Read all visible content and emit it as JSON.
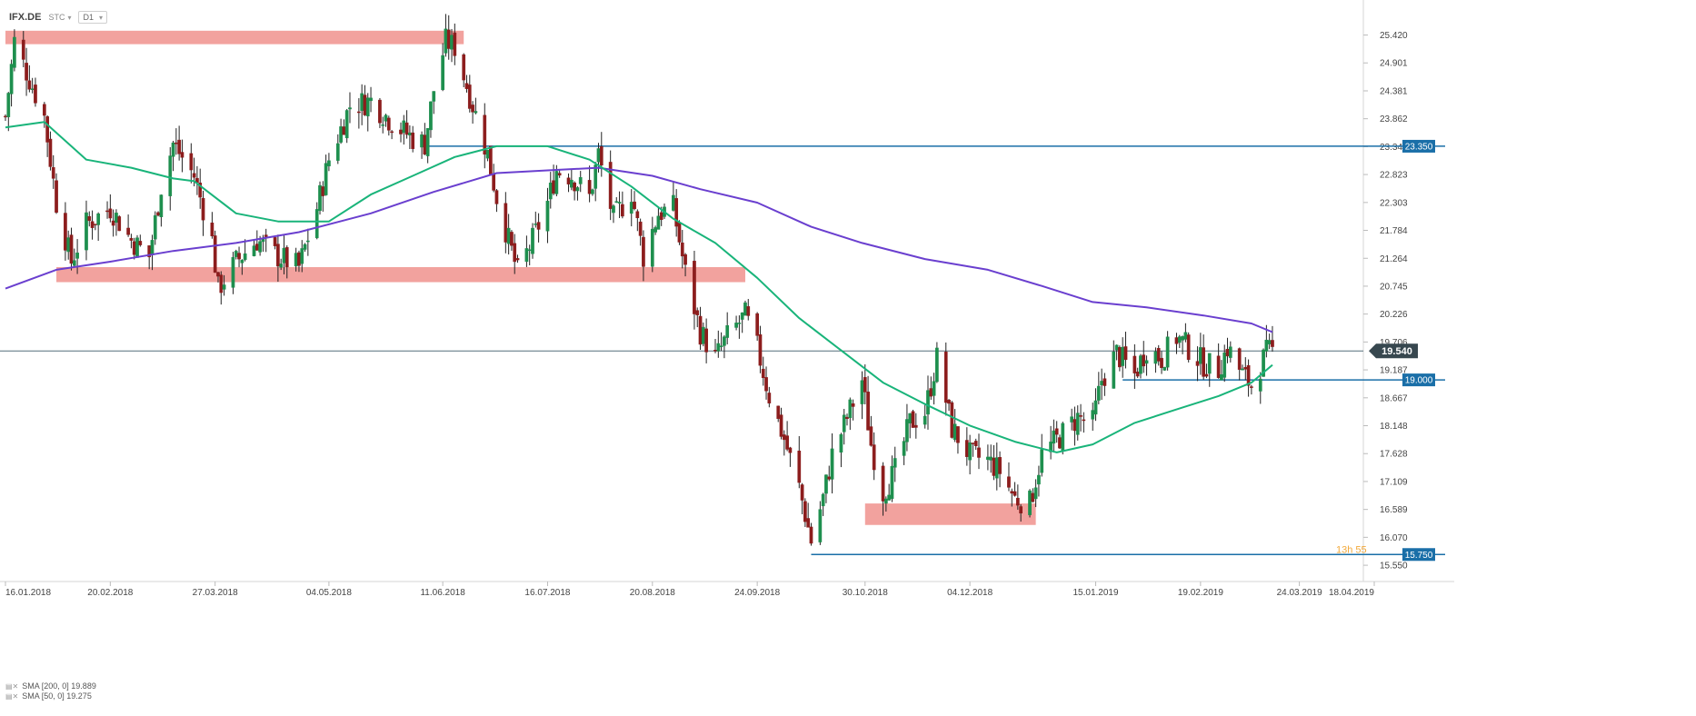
{
  "toolbar": {
    "symbol": "IFX.DE",
    "chart_style": "STC",
    "timeframe": "D1"
  },
  "legend": [
    {
      "text": "SMA  [200,  0]  19.889",
      "color": "#6a3fcf"
    },
    {
      "text": "SMA  [50,  0]  19.275",
      "color": "#19b47a"
    }
  ],
  "colors": {
    "bull": "#1e8f4e",
    "bear": "#8c1d1d",
    "sma50": "#19b47a",
    "sma200": "#6a3fcf",
    "level": "#1a6fa8",
    "zone": "#ef8b86"
  },
  "chart_data": {
    "type": "candlestick",
    "ylim": [
      15.45,
      25.7
    ],
    "x_start": "2018-01-16",
    "x_end": "2019-04-18",
    "yticks": [
      "25.420",
      "24.901",
      "24.381",
      "23.862",
      "23.342",
      "22.823",
      "22.303",
      "21.784",
      "21.264",
      "20.745",
      "20.226",
      "19.706",
      "19.187",
      "18.667",
      "18.148",
      "17.628",
      "17.109",
      "16.589",
      "16.070",
      "15.550"
    ],
    "xticks": [
      "16.01.2018",
      "20.02.2018",
      "27.03.2018",
      "04.05.2018",
      "11.06.2018",
      "16.07.2018",
      "20.08.2018",
      "24.09.2018",
      "30.10.2018",
      "04.12.2018",
      "15.01.2019",
      "19.02.2019",
      "24.03.2019",
      "18.04.2019"
    ],
    "last_price": {
      "value": 19.54,
      "label": "19.540"
    },
    "horizontal_levels": [
      {
        "value": 23.35,
        "label": "23.350",
        "from": "2018-06-05"
      },
      {
        "value": 19.0,
        "label": "19.000",
        "from": "2019-01-24"
      },
      {
        "value": 15.75,
        "label": "15.750",
        "from": "2018-10-12"
      }
    ],
    "zones": [
      {
        "from": "2018-01-16",
        "to": "2018-06-18",
        "low": 25.25,
        "high": 25.5
      },
      {
        "from": "2018-02-02",
        "to": "2018-09-20",
        "low": 20.82,
        "high": 21.1
      },
      {
        "from": "2018-10-30",
        "to": "2018-12-26",
        "low": 16.3,
        "high": 16.7
      }
    ],
    "countdown": "13h 55",
    "price_path": [
      [
        "2018-01-16",
        23.9
      ],
      [
        "2018-01-19",
        25.3
      ],
      [
        "2018-01-24",
        24.6
      ],
      [
        "2018-01-29",
        23.9
      ],
      [
        "2018-02-02",
        22.3
      ],
      [
        "2018-02-07",
        21.2
      ],
      [
        "2018-02-12",
        21.9
      ],
      [
        "2018-02-20",
        22.2
      ],
      [
        "2018-02-27",
        21.6
      ],
      [
        "2018-03-05",
        21.3
      ],
      [
        "2018-03-09",
        22.6
      ],
      [
        "2018-03-13",
        23.4
      ],
      [
        "2018-03-20",
        22.8
      ],
      [
        "2018-03-26",
        21.6
      ],
      [
        "2018-03-28",
        20.7
      ],
      [
        "2018-04-03",
        21.2
      ],
      [
        "2018-04-10",
        21.6
      ],
      [
        "2018-04-17",
        21.3
      ],
      [
        "2018-04-24",
        21.1
      ],
      [
        "2018-04-30",
        22.2
      ],
      [
        "2018-05-04",
        23.1
      ],
      [
        "2018-05-11",
        24.1
      ],
      [
        "2018-05-18",
        24.2
      ],
      [
        "2018-05-25",
        23.8
      ],
      [
        "2018-06-01",
        23.5
      ],
      [
        "2018-06-05",
        23.4
      ],
      [
        "2018-06-08",
        24.4
      ],
      [
        "2018-06-12",
        25.3
      ],
      [
        "2018-06-15",
        25.2
      ],
      [
        "2018-06-20",
        24.3
      ],
      [
        "2018-06-26",
        23.2
      ],
      [
        "2018-06-29",
        22.4
      ],
      [
        "2018-07-03",
        21.6
      ],
      [
        "2018-07-06",
        21.0
      ],
      [
        "2018-07-11",
        21.6
      ],
      [
        "2018-07-16",
        22.3
      ],
      [
        "2018-07-19",
        22.9
      ],
      [
        "2018-07-24",
        22.8
      ],
      [
        "2018-07-30",
        22.4
      ],
      [
        "2018-08-02",
        23.2
      ],
      [
        "2018-08-07",
        22.0
      ],
      [
        "2018-08-13",
        22.5
      ],
      [
        "2018-08-17",
        21.3
      ],
      [
        "2018-08-22",
        22.1
      ],
      [
        "2018-08-27",
        22.2
      ],
      [
        "2018-08-31",
        21.0
      ],
      [
        "2018-09-05",
        19.9
      ],
      [
        "2018-09-10",
        19.4
      ],
      [
        "2018-09-14",
        19.8
      ],
      [
        "2018-09-20",
        20.2
      ],
      [
        "2018-09-24",
        19.6
      ],
      [
        "2018-09-28",
        18.7
      ],
      [
        "2018-10-03",
        17.9
      ],
      [
        "2018-10-08",
        17.0
      ],
      [
        "2018-10-12",
        16.0
      ],
      [
        "2018-10-16",
        16.8
      ],
      [
        "2018-10-19",
        17.6
      ],
      [
        "2018-10-24",
        18.3
      ],
      [
        "2018-10-29",
        19.0
      ],
      [
        "2018-11-01",
        17.8
      ],
      [
        "2018-11-05",
        16.9
      ],
      [
        "2018-11-09",
        17.3
      ],
      [
        "2018-11-14",
        18.2
      ],
      [
        "2018-11-19",
        18.4
      ],
      [
        "2018-11-23",
        19.4
      ],
      [
        "2018-11-28",
        18.1
      ],
      [
        "2018-12-04",
        17.6
      ],
      [
        "2018-12-10",
        17.5
      ],
      [
        "2018-12-14",
        17.3
      ],
      [
        "2018-12-19",
        16.8
      ],
      [
        "2018-12-24",
        16.7
      ],
      [
        "2018-12-28",
        17.6
      ],
      [
        "2019-01-04",
        18.0
      ],
      [
        "2019-01-09",
        18.3
      ],
      [
        "2019-01-14",
        18.2
      ],
      [
        "2019-01-17",
        19.0
      ],
      [
        "2019-01-22",
        19.5
      ],
      [
        "2019-01-28",
        19.1
      ],
      [
        "2019-02-01",
        19.6
      ],
      [
        "2019-02-06",
        19.4
      ],
      [
        "2019-02-11",
        19.8
      ],
      [
        "2019-02-15",
        19.6
      ],
      [
        "2019-02-20",
        19.3
      ],
      [
        "2019-02-25",
        19.2
      ],
      [
        "2019-02-28",
        19.6
      ],
      [
        "2019-03-05",
        19.1
      ],
      [
        "2019-03-08",
        18.9
      ],
      [
        "2019-03-13",
        19.5
      ],
      [
        "2019-03-15",
        19.54
      ]
    ],
    "sma50_path": [
      [
        "2018-01-16",
        23.7
      ],
      [
        "2018-01-29",
        23.8
      ],
      [
        "2018-02-12",
        23.1
      ],
      [
        "2018-02-27",
        22.95
      ],
      [
        "2018-03-13",
        22.75
      ],
      [
        "2018-03-20",
        22.7
      ],
      [
        "2018-04-03",
        22.1
      ],
      [
        "2018-04-17",
        21.95
      ],
      [
        "2018-05-04",
        21.95
      ],
      [
        "2018-05-18",
        22.45
      ],
      [
        "2018-06-01",
        22.8
      ],
      [
        "2018-06-15",
        23.15
      ],
      [
        "2018-06-29",
        23.35
      ],
      [
        "2018-07-16",
        23.35
      ],
      [
        "2018-07-30",
        23.1
      ],
      [
        "2018-08-13",
        22.6
      ],
      [
        "2018-08-27",
        22.0
      ],
      [
        "2018-09-10",
        21.55
      ],
      [
        "2018-09-24",
        20.9
      ],
      [
        "2018-10-08",
        20.15
      ],
      [
        "2018-10-22",
        19.55
      ],
      [
        "2018-11-05",
        18.95
      ],
      [
        "2018-11-19",
        18.55
      ],
      [
        "2018-12-04",
        18.15
      ],
      [
        "2018-12-19",
        17.85
      ],
      [
        "2019-01-02",
        17.65
      ],
      [
        "2019-01-14",
        17.8
      ],
      [
        "2019-01-28",
        18.2
      ],
      [
        "2019-02-11",
        18.45
      ],
      [
        "2019-02-25",
        18.7
      ],
      [
        "2019-03-08",
        18.95
      ],
      [
        "2019-03-15",
        19.28
      ]
    ],
    "sma200_path": [
      [
        "2018-01-16",
        20.7
      ],
      [
        "2018-02-02",
        21.05
      ],
      [
        "2018-02-20",
        21.2
      ],
      [
        "2018-03-13",
        21.4
      ],
      [
        "2018-04-03",
        21.55
      ],
      [
        "2018-04-24",
        21.75
      ],
      [
        "2018-05-18",
        22.1
      ],
      [
        "2018-06-08",
        22.5
      ],
      [
        "2018-06-29",
        22.85
      ],
      [
        "2018-07-16",
        22.9
      ],
      [
        "2018-08-02",
        22.95
      ],
      [
        "2018-08-20",
        22.8
      ],
      [
        "2018-09-05",
        22.55
      ],
      [
        "2018-09-24",
        22.3
      ],
      [
        "2018-10-12",
        21.85
      ],
      [
        "2018-10-29",
        21.55
      ],
      [
        "2018-11-19",
        21.25
      ],
      [
        "2018-12-10",
        21.05
      ],
      [
        "2018-12-28",
        20.75
      ],
      [
        "2019-01-14",
        20.45
      ],
      [
        "2019-02-01",
        20.35
      ],
      [
        "2019-02-20",
        20.2
      ],
      [
        "2019-03-08",
        20.05
      ],
      [
        "2019-03-15",
        19.89
      ]
    ]
  }
}
